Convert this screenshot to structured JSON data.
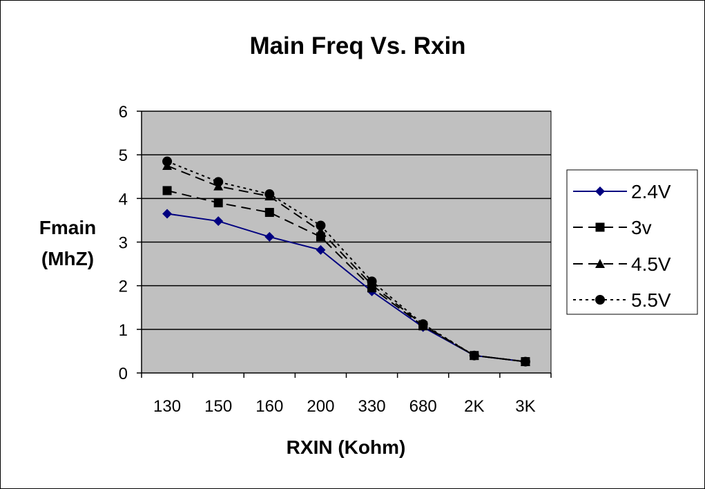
{
  "chart_data": {
    "type": "line",
    "title": "Main Freq Vs. Rxin",
    "xlabel": "RXIN (Kohm)",
    "ylabel": [
      "Fmain",
      "(MhZ)"
    ],
    "categories": [
      "130",
      "150",
      "160",
      "200",
      "330",
      "680",
      "2K",
      "3K"
    ],
    "ylim": [
      0,
      6
    ],
    "yticks": [
      0,
      1,
      2,
      3,
      4,
      5,
      6
    ],
    "grid": true,
    "legend_position": "right",
    "plot_background": "#c0c0c0",
    "series": [
      {
        "name": "2.4V",
        "marker": "diamond",
        "color": "#000080",
        "dash": "solid",
        "values": [
          3.65,
          3.48,
          3.12,
          2.82,
          1.87,
          1.05,
          0.4,
          0.26
        ]
      },
      {
        "name": "3v",
        "marker": "square",
        "color": "#000000",
        "dash": "dashed",
        "values": [
          4.18,
          3.9,
          3.68,
          3.12,
          1.95,
          1.08,
          0.4,
          0.26
        ]
      },
      {
        "name": "4.5V",
        "marker": "triangle",
        "color": "#000000",
        "dash": "dashed",
        "values": [
          4.75,
          4.28,
          4.05,
          3.25,
          2.02,
          1.1,
          0.4,
          0.26
        ]
      },
      {
        "name": "5.5V",
        "marker": "circle",
        "color": "#000000",
        "dash": "dotted",
        "values": [
          4.85,
          4.38,
          4.1,
          3.38,
          2.1,
          1.12,
          0.4,
          0.26
        ]
      }
    ]
  }
}
